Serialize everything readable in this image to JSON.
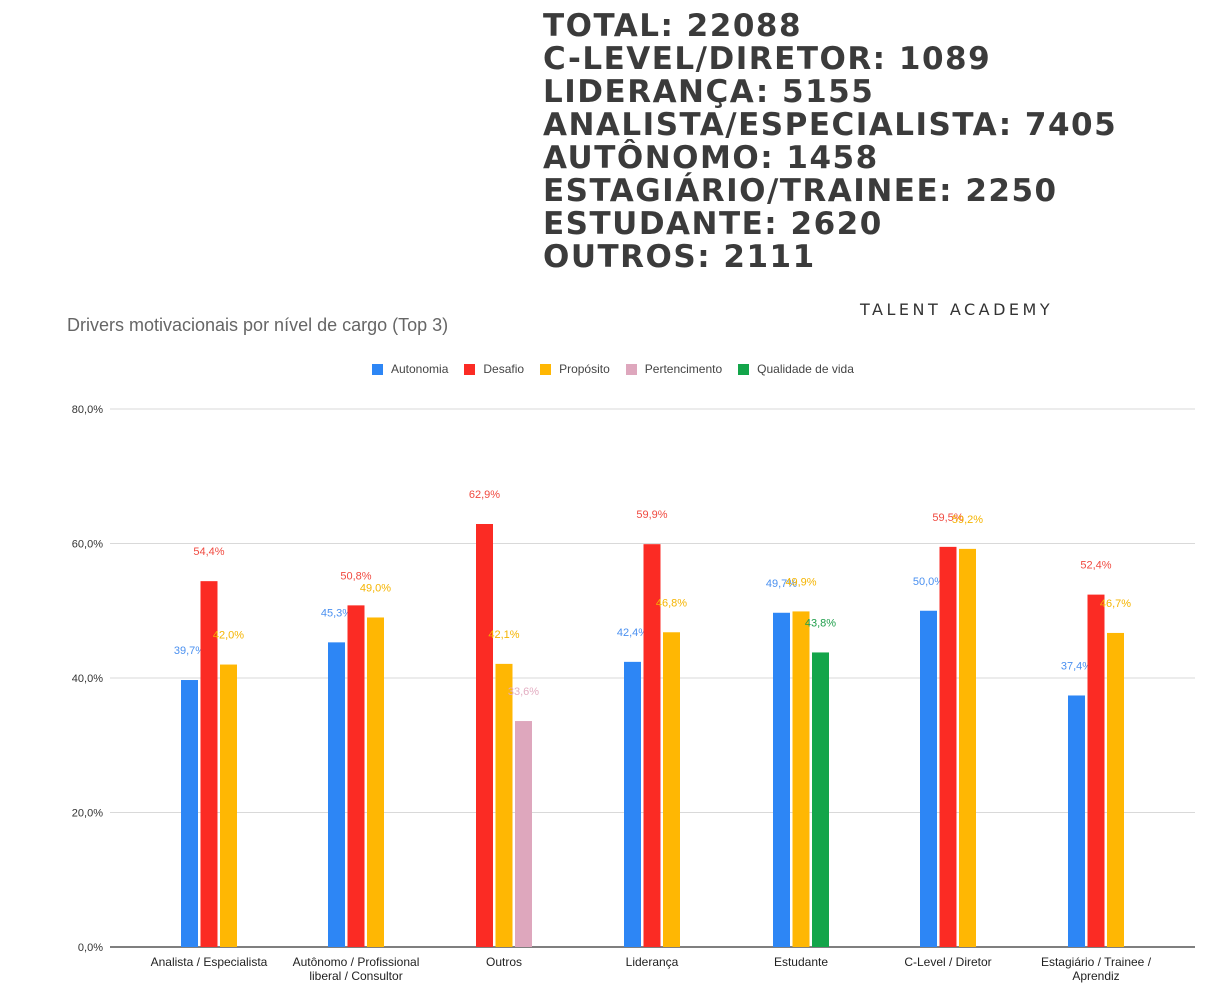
{
  "stats": [
    "TOTAL: 22088",
    "C-LEVEL/DIRETOR: 1089",
    "LIDERANÇA: 5155",
    "ANALISTA/ESPECIALISTA: 7405",
    "AUTÔNOMO: 1458",
    "ESTAGIÁRIO/TRAINEE: 2250",
    "ESTUDANTE: 2620",
    "OUTROS: 2111"
  ],
  "brand": "TALENT ACADEMY",
  "chart_data": {
    "type": "bar",
    "title": "Drivers motivacionais por nível de cargo (Top 3)",
    "xlabel": "",
    "ylabel": "",
    "ylim": [
      0,
      80
    ],
    "yticks": [
      "0,0%",
      "20,0%",
      "40,0%",
      "60,0%",
      "80,0%"
    ],
    "grid": true,
    "legend_position": "top",
    "categories": [
      [
        "Analista / Especialista"
      ],
      [
        "Autônomo / Profissional",
        "liberal / Consultor"
      ],
      [
        "Outros"
      ],
      [
        "Liderança"
      ],
      [
        "Estudante"
      ],
      [
        "C-Level / Diretor"
      ],
      [
        "Estagiário / Trainee /",
        "Aprendiz"
      ]
    ],
    "series": [
      {
        "name": "Autonomia",
        "color": "#2d86f5",
        "labelColor": "#4a90f0",
        "values": [
          39.7,
          45.3,
          null,
          42.4,
          49.7,
          50.0,
          37.4
        ],
        "labels": [
          "39,7%",
          "45,3%",
          null,
          "42,4%",
          "49,7%",
          "50,0%",
          "37,4%"
        ]
      },
      {
        "name": "Desafio",
        "color": "#fb2b24",
        "labelColor": "#f04a40",
        "values": [
          54.4,
          50.8,
          62.9,
          59.9,
          null,
          59.5,
          52.4
        ],
        "labels": [
          "54,4%",
          "50,8%",
          "62,9%",
          "59,9%",
          null,
          "59,5%",
          "52,4%"
        ]
      },
      {
        "name": "Propósito",
        "color": "#ffb703",
        "labelColor": "#f5b400",
        "values": [
          42.0,
          49.0,
          42.1,
          46.8,
          49.9,
          59.2,
          46.7
        ],
        "labels": [
          "42,0%",
          "49,0%",
          "42,1%",
          "46,8%",
          "49,9%",
          "59,2%",
          "46,7%"
        ]
      },
      {
        "name": "Pertencimento",
        "color": "#dea7bd",
        "labelColor": "#e3aec2",
        "values": [
          null,
          null,
          33.6,
          null,
          null,
          null,
          null
        ],
        "labels": [
          null,
          null,
          "33,6%",
          null,
          null,
          null,
          null
        ]
      },
      {
        "name": "Qualidade de vida",
        "color": "#13a54a",
        "labelColor": "#1e9e4a",
        "values": [
          null,
          null,
          null,
          null,
          43.8,
          null,
          null
        ],
        "labels": [
          null,
          null,
          null,
          null,
          "43,8%",
          null,
          null
        ]
      }
    ]
  }
}
